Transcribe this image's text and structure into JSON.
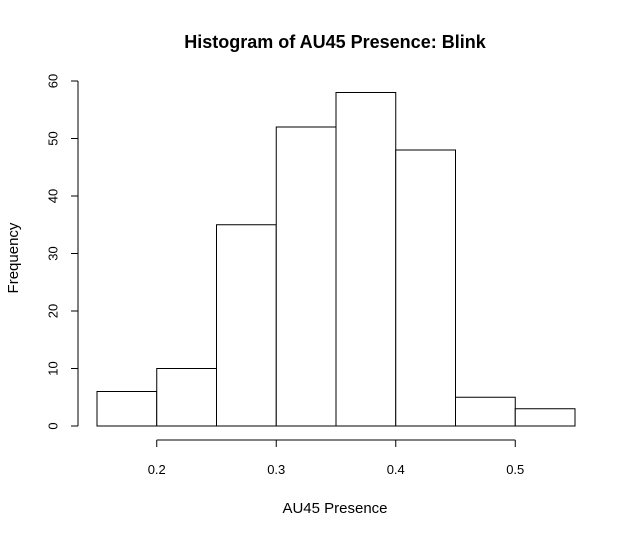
{
  "chart_data": {
    "type": "bar",
    "title": "Histogram of AU45 Presence: Blink",
    "xlabel": "AU45 Presence",
    "ylabel": "Frequency",
    "bins": [
      {
        "start": 0.15,
        "end": 0.2,
        "value": 6
      },
      {
        "start": 0.2,
        "end": 0.25,
        "value": 10
      },
      {
        "start": 0.25,
        "end": 0.3,
        "value": 35
      },
      {
        "start": 0.3,
        "end": 0.35,
        "value": 52
      },
      {
        "start": 0.35,
        "end": 0.4,
        "value": 58
      },
      {
        "start": 0.4,
        "end": 0.45,
        "value": 48
      },
      {
        "start": 0.45,
        "end": 0.5,
        "value": 5
      },
      {
        "start": 0.5,
        "end": 0.55,
        "value": 3
      }
    ],
    "xlim": [
      0.15,
      0.55
    ],
    "ylim": [
      0,
      60
    ],
    "x_ticks": [
      0.2,
      0.3,
      0.4,
      0.5
    ],
    "x_tick_labels": [
      "0.2",
      "0.3",
      "0.4",
      "0.5"
    ],
    "y_ticks": [
      0,
      10,
      20,
      30,
      40,
      50,
      60
    ],
    "y_tick_labels": [
      "0",
      "10",
      "20",
      "30",
      "40",
      "50",
      "60"
    ],
    "grid": false,
    "bar_fill": "#ffffff",
    "bar_stroke": "#000000"
  }
}
